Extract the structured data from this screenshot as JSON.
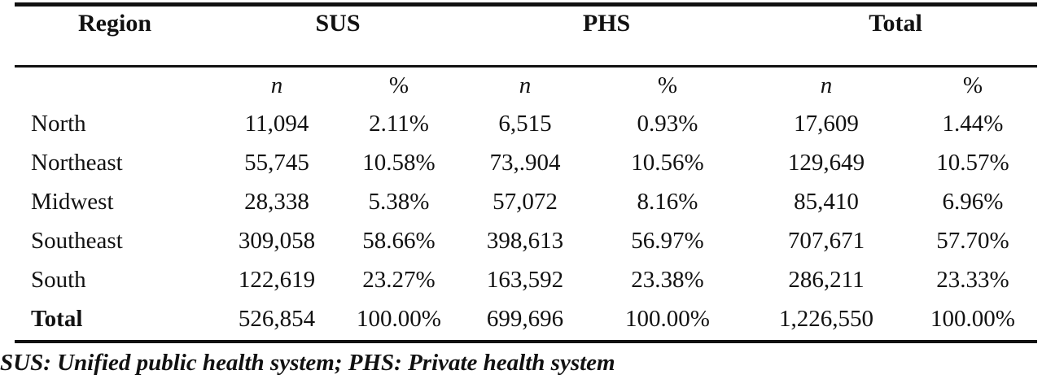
{
  "table": {
    "headers": {
      "region": "Region",
      "sus": "SUS",
      "phs": "PHS",
      "total": "Total"
    },
    "subheaders": [
      "n",
      "%",
      "n",
      "%",
      "n",
      "%"
    ],
    "rows": [
      {
        "label": "North",
        "values": [
          "11,094",
          "2.11%",
          "6,515",
          "0.93%",
          "17,609",
          "1.44%"
        ]
      },
      {
        "label": "Northeast",
        "values": [
          "55,745",
          "10.58%",
          "73,.904",
          "10.56%",
          "129,649",
          "10.57%"
        ]
      },
      {
        "label": "Midwest",
        "values": [
          "28,338",
          "5.38%",
          "57,072",
          "8.16%",
          "85,410",
          "6.96%"
        ]
      },
      {
        "label": "Southeast",
        "values": [
          "309,058",
          "58.66%",
          "398,613",
          "56.97%",
          "707,671",
          "57.70%"
        ]
      },
      {
        "label": "South",
        "values": [
          "122,619",
          "23.27%",
          "163,592",
          "23.38%",
          "286,211",
          "23.33%"
        ]
      }
    ],
    "total_row": {
      "label": "Total",
      "values": [
        "526,854",
        "100.00%",
        "699,696",
        "100.00%",
        "1,226,550",
        "100.00%"
      ]
    }
  },
  "footnote": "SUS: Unified public health system; PHS: Private health system"
}
